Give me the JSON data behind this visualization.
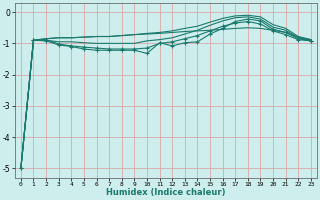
{
  "title": "",
  "xlabel": "Humidex (Indice chaleur)",
  "ylabel": "",
  "background_color": "#ceeeed",
  "grid_color": "#dba8a8",
  "line_color": "#1a7a6e",
  "xlim": [
    -0.5,
    23.5
  ],
  "ylim": [
    -5.3,
    0.3
  ],
  "yticks": [
    0,
    -1,
    -2,
    -3,
    -4,
    -5
  ],
  "xtick_labels": [
    "0",
    "1",
    "2",
    "3",
    "4",
    "5",
    "6",
    "7",
    "8",
    "9",
    "10",
    "11",
    "12",
    "13",
    "14",
    "15",
    "16",
    "17",
    "18",
    "19",
    "20",
    "21",
    "22",
    "23"
  ],
  "series": [
    {
      "x": [
        0,
        1,
        2,
        3,
        4,
        5,
        6,
        7,
        8,
        9,
        10,
        11,
        12,
        13,
        14,
        15,
        16,
        17,
        18,
        19,
        20,
        21,
        22,
        23
      ],
      "y": [
        -5.0,
        -0.9,
        -0.85,
        -0.82,
        -0.82,
        -0.8,
        -0.78,
        -0.78,
        -0.75,
        -0.72,
        -0.7,
        -0.68,
        -0.65,
        -0.62,
        -0.6,
        -0.58,
        -0.55,
        -0.52,
        -0.5,
        -0.52,
        -0.58,
        -0.65,
        -0.8,
        -0.88
      ],
      "marker": false
    },
    {
      "x": [
        0,
        1,
        2,
        3,
        4,
        5,
        6,
        7,
        8,
        9,
        10,
        11,
        12,
        13,
        14,
        15,
        16,
        17,
        18,
        19,
        20,
        21,
        22,
        23
      ],
      "y": [
        -5.0,
        -0.9,
        -0.85,
        -0.82,
        -0.82,
        -0.8,
        -0.78,
        -0.78,
        -0.75,
        -0.72,
        -0.68,
        -0.65,
        -0.6,
        -0.52,
        -0.45,
        -0.32,
        -0.2,
        -0.12,
        -0.1,
        -0.15,
        -0.4,
        -0.52,
        -0.78,
        -0.88
      ],
      "marker": false
    },
    {
      "x": [
        0,
        1,
        2,
        3,
        4,
        5,
        6,
        7,
        8,
        9,
        10,
        11,
        12,
        13,
        14,
        15,
        16,
        17,
        18,
        19,
        20,
        21,
        22,
        23
      ],
      "y": [
        -5.0,
        -0.9,
        -0.88,
        -1.02,
        -1.08,
        -1.12,
        -1.15,
        -1.18,
        -1.18,
        -1.18,
        -1.15,
        -1.0,
        -0.95,
        -0.85,
        -0.75,
        -0.6,
        -0.45,
        -0.35,
        -0.3,
        -0.38,
        -0.6,
        -0.72,
        -0.88,
        -0.92
      ],
      "marker": true
    },
    {
      "x": [
        0,
        1,
        2,
        3,
        4,
        5,
        6,
        7,
        8,
        9,
        10,
        11,
        12,
        13,
        14,
        15,
        16,
        17,
        18,
        19,
        20,
        21,
        22,
        23
      ],
      "y": [
        -5.0,
        -0.9,
        -0.92,
        -1.05,
        -1.1,
        -1.18,
        -1.22,
        -1.22,
        -1.22,
        -1.22,
        -1.32,
        -0.98,
        -1.08,
        -0.98,
        -0.95,
        -0.7,
        -0.52,
        -0.3,
        -0.22,
        -0.28,
        -0.55,
        -0.65,
        -0.85,
        -0.92
      ],
      "marker": true
    },
    {
      "x": [
        0,
        1,
        2,
        3,
        4,
        5,
        6,
        7,
        8,
        9,
        10,
        11,
        12,
        13,
        14,
        15,
        16,
        17,
        18,
        19,
        20,
        21,
        22,
        23
      ],
      "y": [
        -5.0,
        -0.9,
        -0.9,
        -0.95,
        -0.95,
        -0.98,
        -1.0,
        -1.0,
        -1.0,
        -1.0,
        -0.92,
        -0.88,
        -0.82,
        -0.7,
        -0.58,
        -0.42,
        -0.28,
        -0.18,
        -0.15,
        -0.22,
        -0.48,
        -0.58,
        -0.82,
        -0.9
      ],
      "marker": false
    }
  ]
}
